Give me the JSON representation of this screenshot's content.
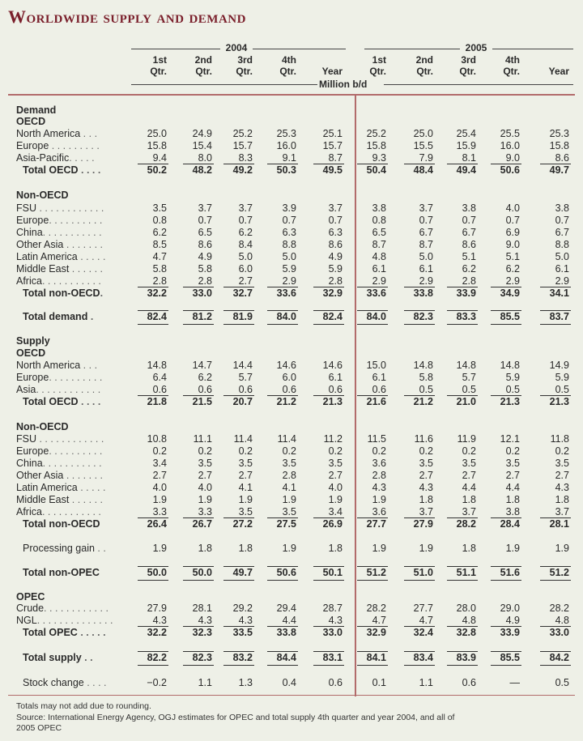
{
  "title": "Worldwide supply and demand",
  "years": [
    "2004",
    "2005"
  ],
  "col_headers": [
    [
      "1st",
      "Qtr."
    ],
    [
      "2nd",
      "Qtr."
    ],
    [
      "3rd",
      "Qtr."
    ],
    [
      "4th",
      "Qtr."
    ],
    [
      "",
      "Year"
    ],
    [
      "1st",
      "Qtr."
    ],
    [
      "2nd",
      "Qtr."
    ],
    [
      "3rd",
      "Qtr."
    ],
    [
      "4th",
      "Qtr."
    ],
    [
      "",
      "Year"
    ]
  ],
  "unit": "Million b/d",
  "rows": [
    {
      "kind": "head",
      "label": "Demand"
    },
    {
      "kind": "head",
      "label": "OECD"
    },
    {
      "kind": "data",
      "label": "North America",
      "dots": " . . . ",
      "values": [
        "25.0",
        "24.9",
        "25.2",
        "25.3",
        "25.1",
        "25.2",
        "25.0",
        "25.4",
        "25.5",
        "25.3"
      ]
    },
    {
      "kind": "data",
      "label": "Europe",
      "dots": " . . . . . . . . . ",
      "values": [
        "15.8",
        "15.4",
        "15.7",
        "16.0",
        "15.7",
        "15.8",
        "15.5",
        "15.9",
        "16.0",
        "15.8"
      ]
    },
    {
      "kind": "data",
      "label": "Asia-Pacific",
      "dots": ". . . . . ",
      "values": [
        "9.4",
        "8.0",
        "8.3",
        "9.1",
        "8.7",
        "9.3",
        "7.9",
        "8.1",
        "9.0",
        "8.6"
      ]
    },
    {
      "kind": "total",
      "label": "Total OECD",
      "dots": " . . . . ",
      "values": [
        "50.2",
        "48.2",
        "49.2",
        "50.3",
        "49.5",
        "50.4",
        "48.4",
        "49.4",
        "50.6",
        "49.7"
      ]
    },
    {
      "kind": "head",
      "label": "Non-OECD"
    },
    {
      "kind": "data",
      "label": "FSU",
      "dots": " . . . . . . . . . . . . ",
      "values": [
        "3.5",
        "3.7",
        "3.7",
        "3.9",
        "3.7",
        "3.8",
        "3.7",
        "3.8",
        "4.0",
        "3.8"
      ]
    },
    {
      "kind": "data",
      "label": "Europe",
      "dots": ". . . . . . . . . . ",
      "values": [
        "0.8",
        "0.7",
        "0.7",
        "0.7",
        "0.7",
        "0.8",
        "0.7",
        "0.7",
        "0.7",
        "0.7"
      ]
    },
    {
      "kind": "data",
      "label": "China",
      "dots": ". . . . . . . . . . . ",
      "values": [
        "6.2",
        "6.5",
        "6.2",
        "6.3",
        "6.3",
        "6.5",
        "6.7",
        "6.7",
        "6.9",
        "6.7"
      ]
    },
    {
      "kind": "data",
      "label": "Other Asia",
      "dots": " . . . . . . . ",
      "values": [
        "8.5",
        "8.6",
        "8.4",
        "8.8",
        "8.6",
        "8.7",
        "8.7",
        "8.6",
        "9.0",
        "8.8"
      ]
    },
    {
      "kind": "data",
      "label": "Latin America",
      "dots": " . . . . . ",
      "values": [
        "4.7",
        "4.9",
        "5.0",
        "5.0",
        "4.9",
        "4.8",
        "5.0",
        "5.1",
        "5.1",
        "5.0"
      ]
    },
    {
      "kind": "data",
      "label": "Middle East",
      "dots": " . . . . . . ",
      "values": [
        "5.8",
        "5.8",
        "6.0",
        "5.9",
        "5.9",
        "6.1",
        "6.1",
        "6.2",
        "6.2",
        "6.1"
      ]
    },
    {
      "kind": "data",
      "label": "Africa",
      "dots": ". . . . . . . . . . . ",
      "values": [
        "2.8",
        "2.8",
        "2.7",
        "2.9",
        "2.8",
        "2.9",
        "2.9",
        "2.8",
        "2.9",
        "2.9"
      ]
    },
    {
      "kind": "total",
      "label": "Total non-OECD",
      "dots": ". ",
      "values": [
        "32.2",
        "33.0",
        "32.7",
        "33.6",
        "32.9",
        "33.6",
        "33.8",
        "33.9",
        "34.9",
        "34.1"
      ]
    },
    {
      "kind": "grand",
      "label": "Total demand",
      "dots": " . ",
      "values": [
        "82.4",
        "81.2",
        "81.9",
        "84.0",
        "82.4",
        "84.0",
        "82.3",
        "83.3",
        "85.5",
        "83.7"
      ]
    },
    {
      "kind": "head",
      "label": "Supply"
    },
    {
      "kind": "head",
      "label": "OECD"
    },
    {
      "kind": "data",
      "label": "North America",
      "dots": " . . . ",
      "values": [
        "14.8",
        "14.7",
        "14.4",
        "14.6",
        "14.6",
        "15.0",
        "14.8",
        "14.8",
        "14.8",
        "14.9"
      ]
    },
    {
      "kind": "data",
      "label": "Europe",
      "dots": ". . . . . . . . . . ",
      "values": [
        "6.4",
        "6.2",
        "5.7",
        "6.0",
        "6.1",
        "6.1",
        "5.8",
        "5.7",
        "5.9",
        "5.9"
      ]
    },
    {
      "kind": "data",
      "label": "Asia",
      "dots": ". . . . . . . . . . . . ",
      "values": [
        "0.6",
        "0.6",
        "0.6",
        "0.6",
        "0.6",
        "0.6",
        "0.5",
        "0.5",
        "0.5",
        "0.5"
      ]
    },
    {
      "kind": "total",
      "label": "Total OECD",
      "dots": " . . . . ",
      "values": [
        "21.8",
        "21.5",
        "20.7",
        "21.2",
        "21.3",
        "21.6",
        "21.2",
        "21.0",
        "21.3",
        "21.3"
      ]
    },
    {
      "kind": "head",
      "label": "Non-OECD"
    },
    {
      "kind": "data",
      "label": "FSU",
      "dots": " . . . . . . . . . . . . ",
      "values": [
        "10.8",
        "11.1",
        "11.4",
        "11.4",
        "11.2",
        "11.5",
        "11.6",
        "11.9",
        "12.1",
        "11.8"
      ]
    },
    {
      "kind": "data",
      "label": "Europe",
      "dots": ". . . . . . . . . . ",
      "values": [
        "0.2",
        "0.2",
        "0.2",
        "0.2",
        "0.2",
        "0.2",
        "0.2",
        "0.2",
        "0.2",
        "0.2"
      ]
    },
    {
      "kind": "data",
      "label": "China",
      "dots": ". . . . . . . . . . . ",
      "values": [
        "3.4",
        "3.5",
        "3.5",
        "3.5",
        "3.5",
        "3.6",
        "3.5",
        "3.5",
        "3.5",
        "3.5"
      ]
    },
    {
      "kind": "data",
      "label": "Other Asia",
      "dots": " . . . . . . . ",
      "values": [
        "2.7",
        "2.7",
        "2.7",
        "2.8",
        "2.7",
        "2.8",
        "2.7",
        "2.7",
        "2.7",
        "2.7"
      ]
    },
    {
      "kind": "data",
      "label": "Latin America",
      "dots": " . . . . . ",
      "values": [
        "4.0",
        "4.0",
        "4.1",
        "4.1",
        "4.0",
        "4.3",
        "4.3",
        "4.4",
        "4.4",
        "4.3"
      ]
    },
    {
      "kind": "data",
      "label": "Middle East",
      "dots": " . . . . . . ",
      "values": [
        "1.9",
        "1.9",
        "1.9",
        "1.9",
        "1.9",
        "1.9",
        "1.8",
        "1.8",
        "1.8",
        "1.8"
      ]
    },
    {
      "kind": "data",
      "label": "Africa",
      "dots": ". . . . . . . . . . . ",
      "values": [
        "3.3",
        "3.3",
        "3.5",
        "3.5",
        "3.4",
        "3.6",
        "3.7",
        "3.7",
        "3.8",
        "3.7"
      ]
    },
    {
      "kind": "total",
      "label": "Total non-OECD",
      "dots": "",
      "values": [
        "26.4",
        "26.7",
        "27.2",
        "27.5",
        "26.9",
        "27.7",
        "27.9",
        "28.2",
        "28.4",
        "28.1"
      ]
    },
    {
      "kind": "plain",
      "label": "Processing gain",
      "dots": " . . ",
      "values": [
        "1.9",
        "1.8",
        "1.8",
        "1.9",
        "1.8",
        "1.9",
        "1.9",
        "1.8",
        "1.9",
        "1.9"
      ]
    },
    {
      "kind": "grand",
      "label": "Total non-OPEC",
      "dots": "",
      "values": [
        "50.0",
        "50.0",
        "49.7",
        "50.6",
        "50.1",
        "51.2",
        "51.0",
        "51.1",
        "51.6",
        "51.2"
      ]
    },
    {
      "kind": "head",
      "label": "OPEC"
    },
    {
      "kind": "data",
      "label": "Crude",
      "dots": ". . . . . . . . . . . . ",
      "values": [
        "27.9",
        "28.1",
        "29.2",
        "29.4",
        "28.7",
        "28.2",
        "27.7",
        "28.0",
        "29.0",
        "28.2"
      ]
    },
    {
      "kind": "data",
      "label": "NGL",
      "dots": ". . . . . . . . . . . . . . ",
      "values": [
        "4.3",
        "4.3",
        "4.3",
        "4.4",
        "4.3",
        "4.7",
        "4.7",
        "4.8",
        "4.9",
        "4.8"
      ]
    },
    {
      "kind": "total",
      "label": "Total OPEC",
      "dots": " . . . . . ",
      "values": [
        "32.2",
        "32.3",
        "33.5",
        "33.8",
        "33.0",
        "32.9",
        "32.4",
        "32.8",
        "33.9",
        "33.0"
      ]
    },
    {
      "kind": "grand",
      "label": "Total supply",
      "dots": " . . ",
      "values": [
        "82.2",
        "82.3",
        "83.2",
        "84.4",
        "83.1",
        "84.1",
        "83.4",
        "83.9",
        "85.5",
        "84.2"
      ]
    },
    {
      "kind": "plain",
      "label": "Stock change",
      "dots": " . . . . ",
      "values": [
        "−0.2",
        "1.1",
        "1.3",
        "0.4",
        "0.6",
        "0.1",
        "1.1",
        "0.6",
        "—",
        "0.5"
      ]
    }
  ],
  "footnotes": [
    "Totals may not add due to rounding.",
    "Source: International Energy Agency, OGJ estimates for OPEC and total supply 4th quarter and year 2004, and all of",
    "2005 OPEC"
  ]
}
